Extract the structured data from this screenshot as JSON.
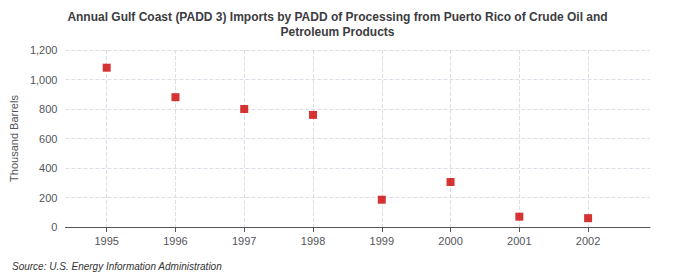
{
  "chart_data": {
    "type": "scatter",
    "title": "Annual Gulf Coast (PADD 3) Imports by PADD of Processing from Puerto Rico of Crude Oil and\nPetroleum Products",
    "x": [
      1995,
      1996,
      1997,
      1998,
      1999,
      2000,
      2001,
      2002
    ],
    "values": [
      1080,
      880,
      800,
      760,
      185,
      305,
      70,
      60
    ],
    "color": "#cc0000",
    "marker": "square",
    "ylabel": "Thousand Barrels",
    "xlim": [
      1994.4,
      2002.9
    ],
    "xticks": [
      1995,
      1996,
      1997,
      1998,
      1999,
      2000,
      2001,
      2002
    ],
    "ylim": [
      0,
      1200
    ],
    "yticks": [
      0,
      200,
      400,
      600,
      800,
      {
        "value": 1000,
        "label": "1,000"
      },
      {
        "value": 1200,
        "label": "1,200"
      }
    ],
    "grid": true,
    "annotations": [
      "Source: U.S. Energy Information Administration"
    ]
  }
}
